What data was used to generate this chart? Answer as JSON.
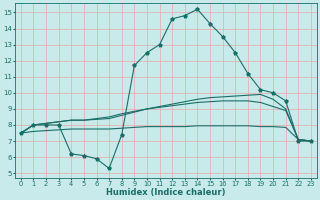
{
  "xlabel": "Humidex (Indice chaleur)",
  "xlim": [
    -0.5,
    23.5
  ],
  "ylim": [
    4.7,
    15.6
  ],
  "xticks": [
    0,
    1,
    2,
    3,
    4,
    5,
    6,
    7,
    8,
    9,
    10,
    11,
    12,
    13,
    14,
    15,
    16,
    17,
    18,
    19,
    20,
    21,
    22,
    23
  ],
  "yticks": [
    5,
    6,
    7,
    8,
    9,
    10,
    11,
    12,
    13,
    14,
    15
  ],
  "bg_color": "#c8eaea",
  "line_color": "#1a6e6a",
  "grid_color": "#e8a8a8",
  "line_main_x": [
    0,
    1,
    2,
    3,
    4,
    5,
    6,
    7,
    8,
    9,
    10,
    11,
    12,
    13,
    14,
    15,
    16,
    17,
    18,
    19,
    20,
    21,
    22,
    23
  ],
  "line_main_y": [
    7.5,
    8.0,
    8.0,
    8.0,
    6.2,
    6.1,
    5.9,
    5.3,
    7.4,
    11.7,
    12.5,
    13.0,
    14.6,
    14.8,
    15.2,
    14.3,
    13.5,
    12.5,
    11.2,
    10.2,
    10.0,
    9.5,
    7.0,
    7.0
  ],
  "line2_x": [
    0,
    1,
    2,
    3,
    4,
    5,
    6,
    7,
    8,
    9,
    10,
    11,
    12,
    13,
    14,
    15,
    16,
    17,
    18,
    19,
    20,
    21,
    22,
    23
  ],
  "line2_y": [
    7.5,
    8.0,
    8.1,
    8.2,
    8.3,
    8.3,
    8.35,
    8.4,
    8.6,
    8.8,
    9.0,
    9.15,
    9.3,
    9.45,
    9.6,
    9.7,
    9.75,
    9.8,
    9.85,
    9.9,
    9.6,
    9.0,
    7.1,
    7.0
  ],
  "line3_x": [
    0,
    1,
    2,
    3,
    4,
    5,
    6,
    7,
    8,
    9,
    10,
    11,
    12,
    13,
    14,
    15,
    16,
    17,
    18,
    19,
    20,
    21,
    22,
    23
  ],
  "line3_y": [
    7.5,
    8.0,
    8.1,
    8.2,
    8.3,
    8.3,
    8.4,
    8.5,
    8.7,
    8.85,
    9.0,
    9.1,
    9.2,
    9.3,
    9.4,
    9.45,
    9.5,
    9.5,
    9.5,
    9.4,
    9.15,
    8.9,
    7.1,
    7.0
  ],
  "line4_x": [
    0,
    1,
    2,
    3,
    4,
    5,
    6,
    7,
    8,
    9,
    10,
    11,
    12,
    13,
    14,
    15,
    16,
    17,
    18,
    19,
    20,
    21,
    22,
    23
  ],
  "line4_y": [
    7.5,
    7.6,
    7.65,
    7.7,
    7.75,
    7.75,
    7.75,
    7.75,
    7.8,
    7.85,
    7.9,
    7.9,
    7.9,
    7.9,
    7.95,
    7.95,
    7.95,
    7.95,
    7.95,
    7.9,
    7.9,
    7.85,
    7.1,
    7.0
  ]
}
